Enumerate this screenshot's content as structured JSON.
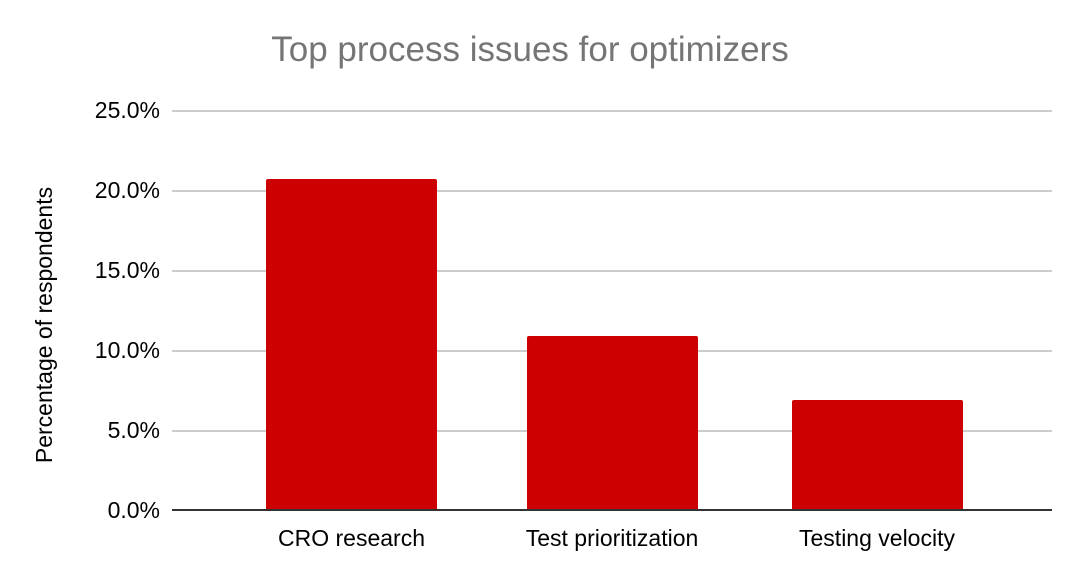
{
  "chart_data": {
    "type": "bar",
    "title": "Top process issues for optimizers",
    "xlabel": "",
    "ylabel": "Percentage of respondents",
    "categories": [
      "CRO research",
      "Test prioritization",
      "Testing velocity"
    ],
    "values": [
      20.7,
      10.9,
      6.9
    ],
    "value_unit": "%",
    "ylim": [
      0,
      25
    ],
    "yticks": [
      {
        "value": 0,
        "label": "0.0%"
      },
      {
        "value": 5,
        "label": "5.0%"
      },
      {
        "value": 10,
        "label": "10.0%"
      },
      {
        "value": 15,
        "label": "15.0%"
      },
      {
        "value": 20,
        "label": "20.0%"
      },
      {
        "value": 25,
        "label": "25.0%"
      }
    ],
    "grid": true,
    "legend": "none",
    "colors": {
      "bar": "#CC0000",
      "title_text": "#757575",
      "axis_text": "#000000",
      "gridline": "#CCCCCC",
      "axis_line": "#333333",
      "background": "#FFFFFF"
    }
  }
}
